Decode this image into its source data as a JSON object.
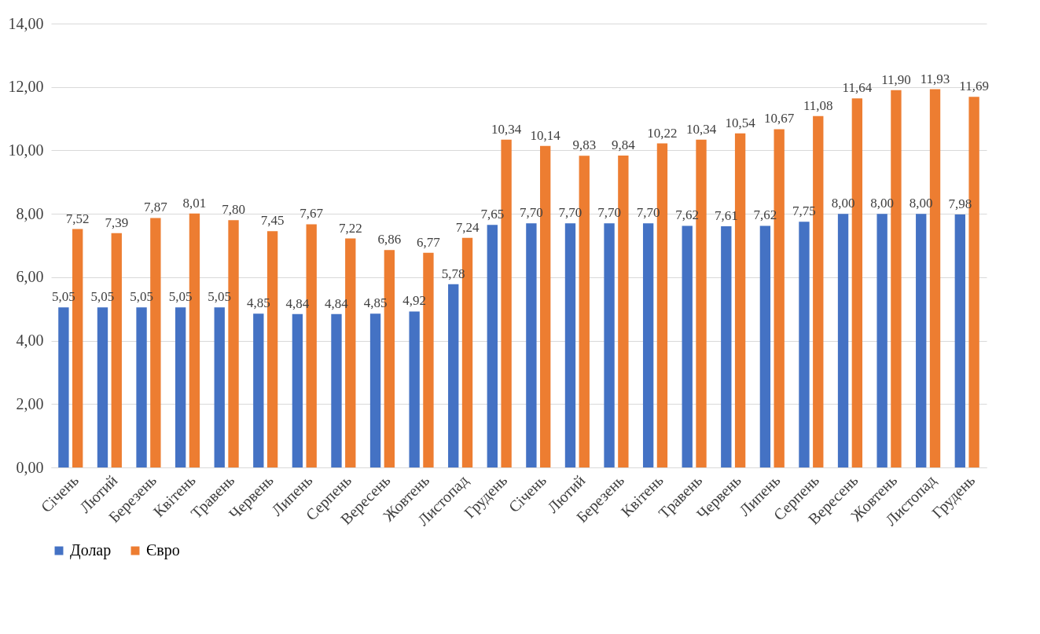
{
  "chart_data": {
    "type": "bar",
    "categories": [
      "Січень",
      "Лютий",
      "Березень",
      "Квітень",
      "Травень",
      "Червень",
      "Липень",
      "Серпень",
      "Вересень",
      "Жовтень",
      "Листопад",
      "Грудень",
      "Січень",
      "Лютий",
      "Березень",
      "Квітень",
      "Травень",
      "Червень",
      "Липень",
      "Серпень",
      "Вересень",
      "Жовтень",
      "Листопад",
      "Грудень"
    ],
    "series": [
      {
        "name": "Долар",
        "color": "#4472c4",
        "values": [
          5.05,
          5.05,
          5.05,
          5.05,
          5.05,
          4.85,
          4.84,
          4.84,
          4.85,
          4.92,
          5.78,
          7.65,
          7.7,
          7.7,
          7.7,
          7.7,
          7.62,
          7.61,
          7.62,
          7.75,
          8.0,
          8.0,
          8.0,
          7.98
        ],
        "value_labels": [
          "5,05",
          "5,05",
          "5,05",
          "5,05",
          "5,05",
          "4,85",
          "4,84",
          "4,84",
          "4,85",
          "4,92",
          "5,78",
          "7,65",
          "7,70",
          "7,70",
          "7,70",
          "7,70",
          "7,62",
          "7,61",
          "7,62",
          "7,75",
          "8,00",
          "8,00",
          "8,00",
          "7,98"
        ]
      },
      {
        "name": "Євро",
        "color": "#ed7d31",
        "values": [
          7.52,
          7.39,
          7.87,
          8.01,
          7.8,
          7.45,
          7.67,
          7.22,
          6.86,
          6.77,
          7.24,
          10.34,
          10.14,
          9.83,
          9.84,
          10.22,
          10.34,
          10.54,
          10.67,
          11.08,
          11.64,
          11.9,
          11.93,
          11.69
        ],
        "value_labels": [
          "7,52",
          "7,39",
          "7,87",
          "8,01",
          "7,80",
          "7,45",
          "7,67",
          "7,22",
          "6,86",
          "6,77",
          "7,24",
          "10,34",
          "10,14",
          "9,83",
          "9,84",
          "10,22",
          "10,34",
          "10,54",
          "10,67",
          "11,08",
          "11,64",
          "11,90",
          "11,93",
          "11,69"
        ]
      }
    ],
    "ylim": [
      0,
      14
    ],
    "yticks": [
      {
        "value": 0,
        "label": "0,00"
      },
      {
        "value": 2,
        "label": "2,00"
      },
      {
        "value": 4,
        "label": "4,00"
      },
      {
        "value": 6,
        "label": "6,00"
      },
      {
        "value": 8,
        "label": "8,00"
      },
      {
        "value": 10,
        "label": "10,00"
      },
      {
        "value": 12,
        "label": "12,00"
      },
      {
        "value": 14,
        "label": "14,00"
      }
    ],
    "grid": "y",
    "legend": "bottom"
  }
}
